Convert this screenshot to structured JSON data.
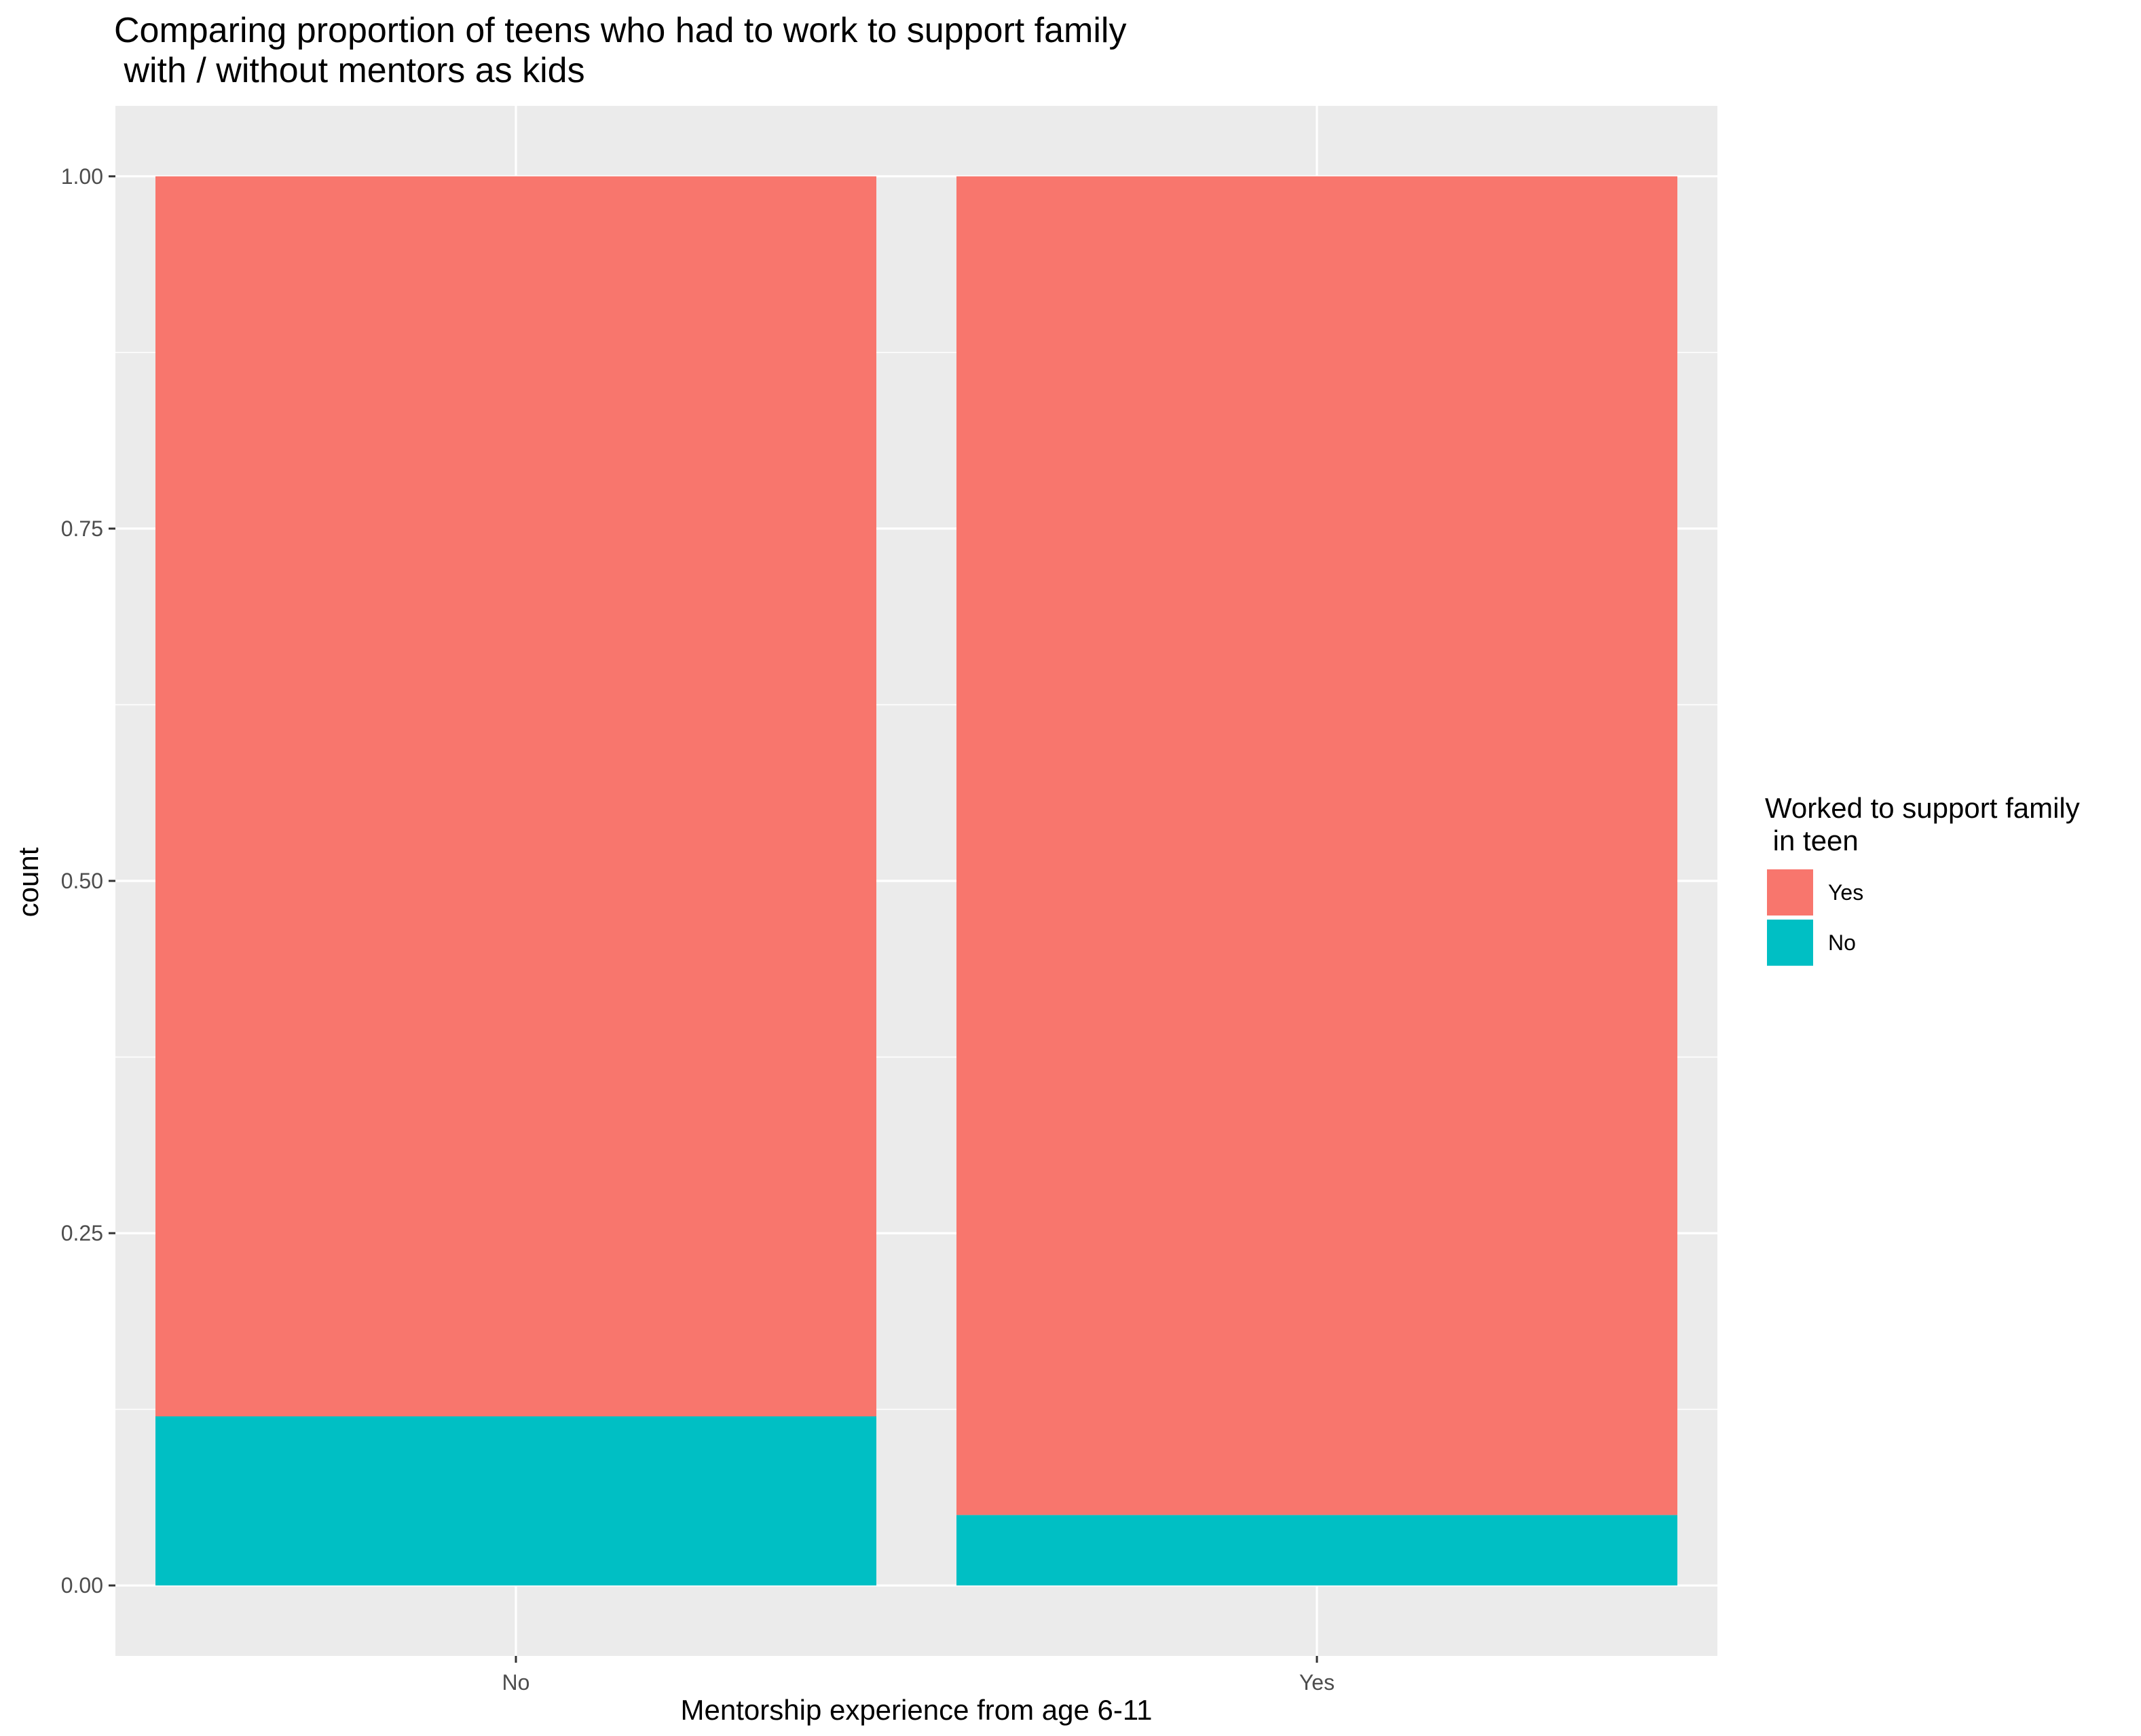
{
  "chart_data": {
    "type": "bar",
    "stacked": true,
    "title_lines": [
      "Comparing proportion of teens who had to work to support family",
      " with / without mentors as kids"
    ],
    "xlabel": "Mentorship experience from age 6-11",
    "ylabel": "count",
    "categories": [
      "No",
      "Yes"
    ],
    "series": [
      {
        "name": "No",
        "color": "#00BFC4",
        "values": [
          0.12,
          0.05
        ]
      },
      {
        "name": "Yes",
        "color": "#F8766D",
        "values": [
          0.88,
          0.95
        ]
      }
    ],
    "ylim": [
      -0.05,
      1.05
    ],
    "y_ticks": [
      0.0,
      0.25,
      0.5,
      0.75,
      1.0
    ],
    "y_tick_labels": [
      "0.00",
      "0.25",
      "0.50",
      "0.75",
      "1.00"
    ],
    "grid": true,
    "legend": {
      "title_lines": [
        "Worked to support family",
        " in teen"
      ],
      "placement": "right",
      "entries": [
        {
          "label": "Yes",
          "color": "#F8766D"
        },
        {
          "label": "No",
          "color": "#00BFC4"
        }
      ]
    }
  }
}
